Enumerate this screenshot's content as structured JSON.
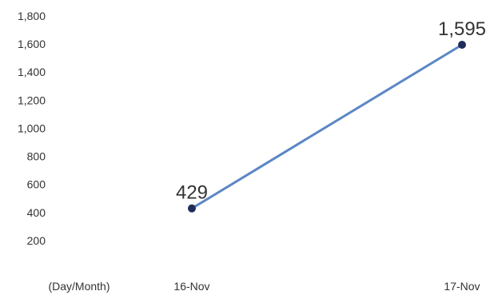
{
  "chart_data": {
    "type": "line",
    "categories": [
      "16-Nov",
      "17-Nov"
    ],
    "series": [
      {
        "values": [
          429,
          1595
        ]
      }
    ],
    "data_labels": [
      "429",
      "1,595"
    ],
    "x_unit_label": "(Day/Month)",
    "y_ticks": [
      200,
      400,
      600,
      800,
      1000,
      1200,
      1400,
      1600,
      1800
    ],
    "y_tick_labels": [
      "200",
      "400",
      "600",
      "800",
      "1,000",
      "1,200",
      "1,400",
      "1,600",
      "1,800"
    ],
    "ylim": [
      0,
      1800
    ],
    "grid": false,
    "legend": "none",
    "line_color": "#5b87c5",
    "marker_color": "#1f2d5a"
  }
}
